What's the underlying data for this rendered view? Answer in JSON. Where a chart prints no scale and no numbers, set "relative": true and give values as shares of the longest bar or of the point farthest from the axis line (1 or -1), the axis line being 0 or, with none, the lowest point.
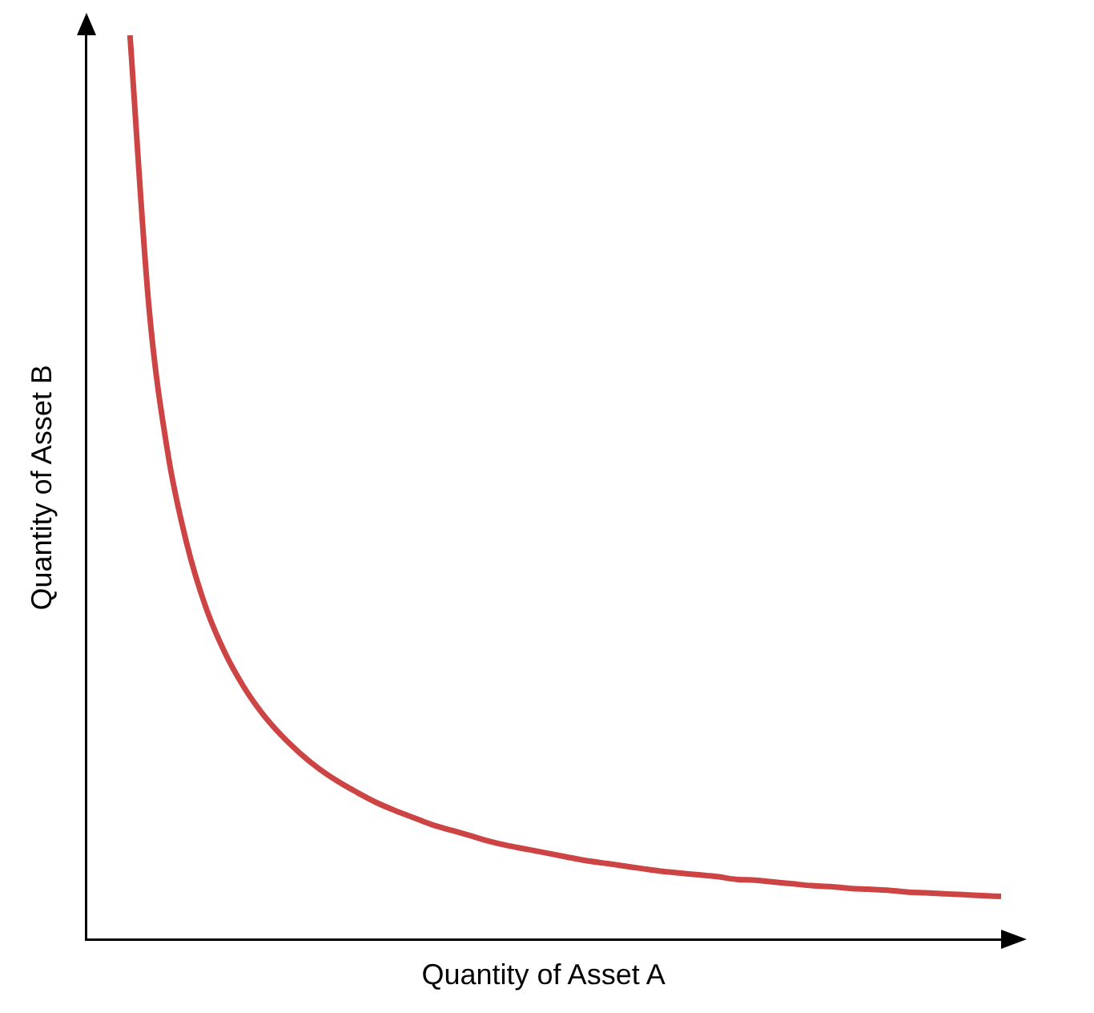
{
  "chart_data": {
    "type": "line",
    "xlabel": "Quantity of Asset A",
    "ylabel": "Quantity of Asset B",
    "relative": true,
    "color": "#cc4444",
    "categories": [
      null,
      null,
      null,
      null,
      null,
      null,
      null,
      null,
      null,
      null,
      null,
      null,
      null,
      null,
      null,
      null,
      null,
      null,
      null,
      null,
      null,
      null,
      null,
      null,
      null,
      null,
      null,
      null,
      null,
      null,
      null,
      null,
      null,
      null,
      null,
      null,
      null,
      null,
      null,
      null,
      null,
      null,
      null,
      null,
      null,
      null,
      null
    ],
    "values": [
      1,
      0.7,
      0.538,
      0.438,
      0.368,
      0.318,
      0.28,
      0.25,
      0.226,
      0.206,
      0.189,
      0.175,
      0.163,
      0.152,
      0.143,
      0.135,
      0.127,
      0.121,
      0.115,
      0.109,
      0.104,
      0.1,
      0.096,
      0.092,
      0.088,
      0.085,
      0.082,
      0.079,
      0.076,
      0.074,
      0.072,
      0.07,
      0.067,
      0.066,
      0.064,
      0.062,
      0.06,
      0.059,
      0.057,
      0.056,
      0.055,
      0.053,
      0.052,
      0.051,
      0.05,
      0.049,
      0.048
    ]
  }
}
